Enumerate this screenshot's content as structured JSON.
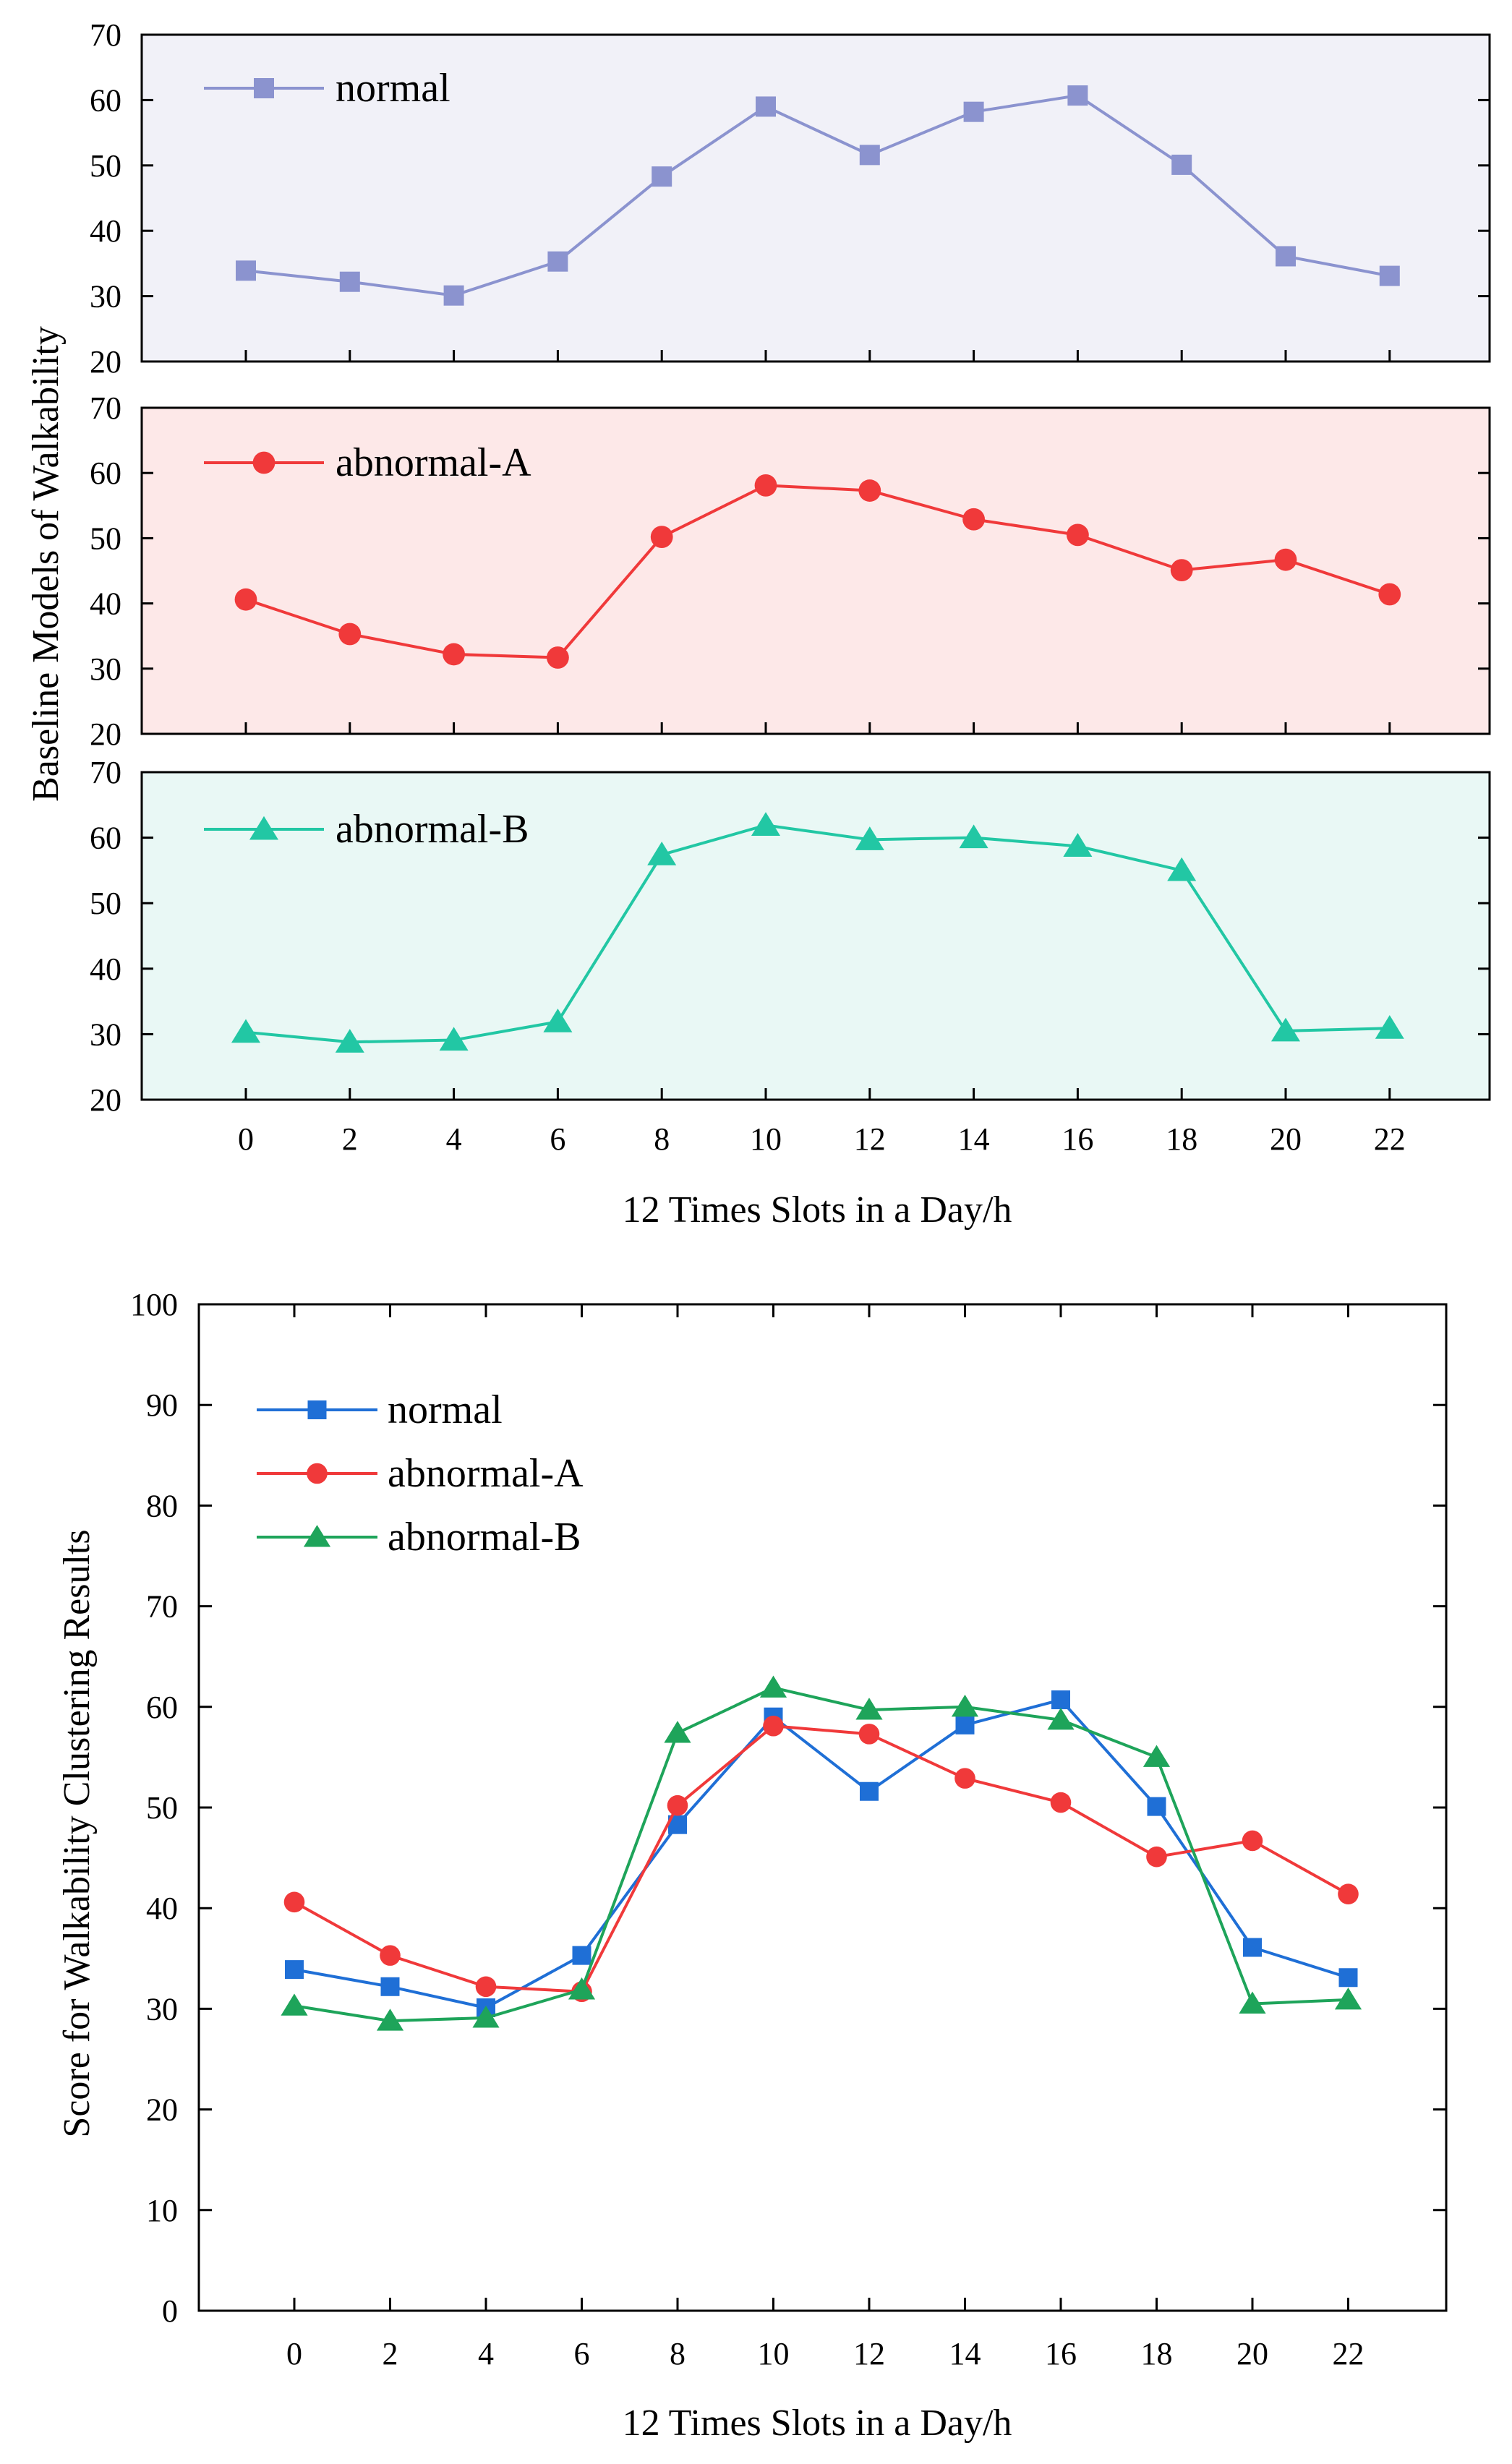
{
  "chart_data": [
    {
      "type": "line",
      "panel": "top-stack-1",
      "background": "#f1f1f8",
      "color": "#8b93cf",
      "marker": "square",
      "x": [
        0,
        2,
        4,
        6,
        8,
        10,
        12,
        14,
        16,
        18,
        20,
        22
      ],
      "series": [
        {
          "name": "normal",
          "values": [
            33.9,
            32.2,
            30.1,
            35.3,
            48.3,
            59.0,
            51.6,
            58.2,
            60.7,
            50.1,
            36.1,
            33.1
          ]
        }
      ],
      "ylim": [
        20,
        70
      ],
      "yticks": [
        "20",
        "30",
        "40",
        "50",
        "60",
        "70"
      ],
      "legend": "top-left"
    },
    {
      "type": "line",
      "panel": "top-stack-2",
      "background": "#fde8e8",
      "color": "#f0393a",
      "marker": "circle",
      "x": [
        0,
        2,
        4,
        6,
        8,
        10,
        12,
        14,
        16,
        18,
        20,
        22
      ],
      "series": [
        {
          "name": "abnormal-A",
          "values": [
            40.6,
            35.3,
            32.2,
            31.7,
            50.2,
            58.1,
            57.3,
            52.9,
            50.5,
            45.1,
            46.7,
            41.4
          ]
        }
      ],
      "ylim": [
        20,
        70
      ],
      "yticks": [
        "20",
        "30",
        "40",
        "50",
        "60",
        "70"
      ],
      "legend": "top-left"
    },
    {
      "type": "line",
      "panel": "top-stack-3",
      "background": "#e9f8f5",
      "color": "#22c7a4",
      "marker": "triangle",
      "x": [
        0,
        2,
        4,
        6,
        8,
        10,
        12,
        14,
        16,
        18,
        20,
        22
      ],
      "series": [
        {
          "name": "abnormal-B",
          "values": [
            30.3,
            28.8,
            29.1,
            31.9,
            57.4,
            61.9,
            59.7,
            60.0,
            58.7,
            55.0,
            30.5,
            30.9
          ]
        }
      ],
      "ylim": [
        20,
        70
      ],
      "yticks": [
        "20",
        "30",
        "40",
        "50",
        "60",
        "70"
      ],
      "legend": "top-left"
    },
    {
      "type": "line",
      "panel": "bottom",
      "x": [
        0,
        2,
        4,
        6,
        8,
        10,
        12,
        14,
        16,
        18,
        20,
        22
      ],
      "series": [
        {
          "name": "normal",
          "color": "#1f6fd6",
          "marker": "square",
          "values": [
            33.9,
            32.2,
            30.1,
            35.3,
            48.3,
            59.0,
            51.6,
            58.2,
            60.7,
            50.1,
            36.1,
            33.1
          ]
        },
        {
          "name": "abnormal-A",
          "color": "#f0393a",
          "marker": "circle",
          "values": [
            40.6,
            35.3,
            32.2,
            31.7,
            50.2,
            58.1,
            57.3,
            52.9,
            50.5,
            45.1,
            46.7,
            41.4
          ]
        },
        {
          "name": "abnormal-B",
          "color": "#1ea45a",
          "marker": "triangle",
          "values": [
            30.3,
            28.8,
            29.1,
            31.9,
            57.4,
            61.9,
            59.7,
            60.0,
            58.7,
            55.0,
            30.5,
            30.9
          ]
        }
      ],
      "ylim": [
        0,
        100
      ],
      "yticks": [
        "0",
        "10",
        "20",
        "30",
        "40",
        "50",
        "60",
        "70",
        "80",
        "90",
        "100"
      ],
      "legend": "top-left"
    }
  ],
  "labels": {
    "top_ylabel": "Baseline Models of Walkability",
    "top_xlabel": "12 Times Slots in a Day/h",
    "bottom_ylabel": "Score for Walkability Clustering Results",
    "bottom_xlabel": "12 Times Slots in a Day/h",
    "xticks": [
      "0",
      "2",
      "4",
      "6",
      "8",
      "10",
      "12",
      "14",
      "16",
      "18",
      "20",
      "22"
    ]
  }
}
